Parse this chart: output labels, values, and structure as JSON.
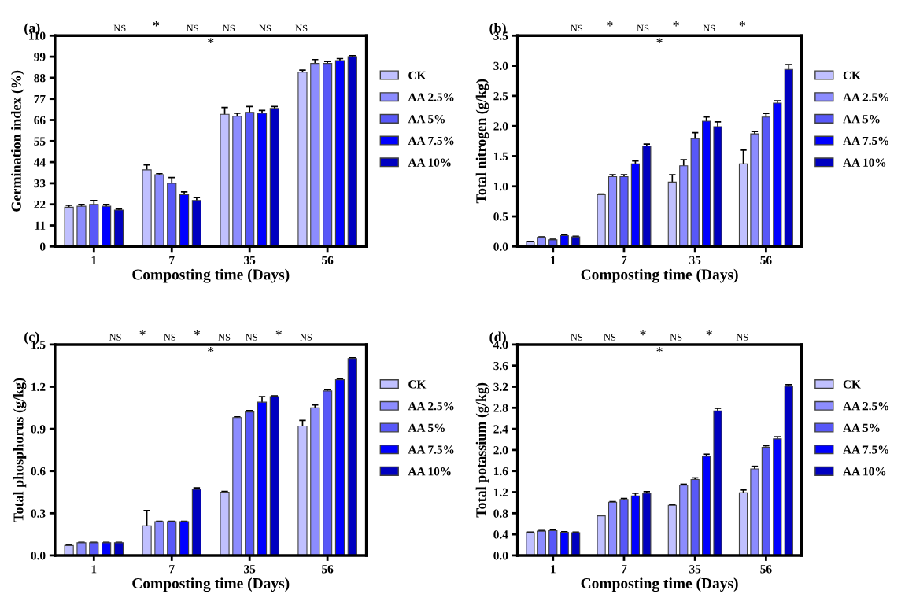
{
  "chart_data": [
    {
      "type": "bar",
      "title": "(a)",
      "xlabel": "Composting time (Days)",
      "ylabel": "Germination index (%)",
      "categories": [
        "1",
        "7",
        "35",
        "56"
      ],
      "ylim": [
        0,
        110
      ],
      "yticks": [
        0,
        11,
        22,
        33,
        44,
        55,
        66,
        77,
        88,
        99,
        110
      ],
      "legend": "right",
      "grid": false,
      "series": [
        {
          "name": "CK",
          "color": "#c0c0ff",
          "values": [
            20.5,
            40,
            69,
            91
          ],
          "errors": [
            1,
            2.5,
            3.5,
            1
          ]
        },
        {
          "name": "AA 2.5%",
          "color": "#8c8cff",
          "values": [
            21,
            37.5,
            68,
            95.5
          ],
          "errors": [
            1,
            0.5,
            1.5,
            2
          ]
        },
        {
          "name": "AA 5%",
          "color": "#5858f8",
          "values": [
            22,
            33,
            70,
            95.5
          ],
          "errors": [
            2,
            3,
            3,
            1
          ]
        },
        {
          "name": "AA 7.5%",
          "color": "#0000ff",
          "values": [
            21,
            27,
            69.5,
            97
          ],
          "errors": [
            1,
            1.5,
            1.5,
            1
          ]
        },
        {
          "name": "AA 10%",
          "color": "#0000c0",
          "values": [
            19,
            24,
            72,
            99
          ],
          "errors": [
            0.5,
            1.5,
            1,
            0.5
          ]
        }
      ],
      "annotations": [
        "*",
        "NS",
        "*",
        "NS",
        "NS",
        "NS",
        "NS"
      ]
    },
    {
      "type": "bar",
      "title": "(b)",
      "xlabel": "Composting time (Days)",
      "ylabel": "Total nitrogen (g/kg)",
      "categories": [
        "1",
        "7",
        "35",
        "56"
      ],
      "ylim": [
        0,
        3.5
      ],
      "yticks": [
        {
          "value": 0,
          "label": "0.0"
        },
        {
          "value": 0.5,
          "label": "0.5"
        },
        {
          "value": 1,
          "label": "1.0"
        },
        {
          "value": 1.5,
          "label": "1.5"
        },
        {
          "value": 2,
          "label": "2.0"
        },
        {
          "value": 2.5,
          "label": "2.5"
        },
        {
          "value": 3,
          "label": "3.0"
        },
        {
          "value": 3.5,
          "label": "3.5"
        }
      ],
      "legend": "right",
      "grid": false,
      "series": [
        {
          "name": "CK",
          "color": "#c0c0ff",
          "values": [
            0.08,
            0.86,
            1.07,
            1.37
          ],
          "errors": [
            0.005,
            0.01,
            0.12,
            0.23
          ]
        },
        {
          "name": "AA 2.5%",
          "color": "#8c8cff",
          "values": [
            0.15,
            1.16,
            1.34,
            1.87
          ],
          "errors": [
            0.01,
            0.03,
            0.1,
            0.04
          ]
        },
        {
          "name": "AA 5%",
          "color": "#5858f8",
          "values": [
            0.11,
            1.16,
            1.79,
            2.15
          ],
          "errors": [
            0.01,
            0.03,
            0.1,
            0.06
          ]
        },
        {
          "name": "AA 7.5%",
          "color": "#0000ff",
          "values": [
            0.18,
            1.37,
            2.08,
            2.38
          ],
          "errors": [
            0.01,
            0.05,
            0.07,
            0.04
          ]
        },
        {
          "name": "AA 10%",
          "color": "#0000c0",
          "values": [
            0.16,
            1.67,
            1.99,
            2.94
          ],
          "errors": [
            0.01,
            0.03,
            0.08,
            0.08
          ]
        }
      ],
      "annotations": [
        "*",
        "NS",
        "*",
        "NS",
        "*",
        "NS",
        "*"
      ]
    },
    {
      "type": "bar",
      "title": "(c)",
      "xlabel": "Composting time (Days)",
      "ylabel": "Total phosphorus (g/kg)",
      "categories": [
        "1",
        "7",
        "35",
        "56"
      ],
      "ylim": [
        0,
        1.5
      ],
      "yticks": [
        {
          "value": 0,
          "label": "0.0"
        },
        {
          "value": 0.3,
          "label": "0.3"
        },
        {
          "value": 0.6,
          "label": "0.6"
        },
        {
          "value": 0.9,
          "label": "0.9"
        },
        {
          "value": 1.2,
          "label": "1.2"
        },
        {
          "value": 1.5,
          "label": "1.5"
        }
      ],
      "legend": "right",
      "grid": false,
      "series": [
        {
          "name": "CK",
          "color": "#c0c0ff",
          "values": [
            0.07,
            0.21,
            0.45,
            0.92
          ],
          "errors": [
            0.003,
            0.11,
            0.005,
            0.04
          ]
        },
        {
          "name": "AA 2.5%",
          "color": "#8c8cff",
          "values": [
            0.09,
            0.24,
            0.98,
            1.05
          ],
          "errors": [
            0.003,
            0.003,
            0.005,
            0.02
          ]
        },
        {
          "name": "AA 5%",
          "color": "#5858f8",
          "values": [
            0.09,
            0.24,
            1.02,
            1.17
          ],
          "errors": [
            0.003,
            0.003,
            0.01,
            0.01
          ]
        },
        {
          "name": "AA 7.5%",
          "color": "#0000ff",
          "values": [
            0.09,
            0.24,
            1.09,
            1.25
          ],
          "errors": [
            0.003,
            0.003,
            0.04,
            0.005
          ]
        },
        {
          "name": "AA 10%",
          "color": "#0000c0",
          "values": [
            0.09,
            0.47,
            1.13,
            1.4
          ],
          "errors": [
            0.003,
            0.01,
            0.005,
            0.005
          ]
        }
      ],
      "annotations": [
        "*",
        "NS",
        "*",
        "NS",
        "*",
        "NS",
        "NS",
        "*",
        "NS"
      ]
    },
    {
      "type": "bar",
      "title": "(d)",
      "xlabel": "Composting time (Days)",
      "ylabel": "Total potassium (g/kg)",
      "categories": [
        "1",
        "7",
        "35",
        "56"
      ],
      "ylim": [
        0,
        4
      ],
      "yticks": [
        {
          "value": 0,
          "label": "0.0"
        },
        {
          "value": 0.4,
          "label": "0.4"
        },
        {
          "value": 0.8,
          "label": "0.8"
        },
        {
          "value": 1.2,
          "label": "1.2"
        },
        {
          "value": 1.6,
          "label": "1.6"
        },
        {
          "value": 2,
          "label": "2.0"
        },
        {
          "value": 2.4,
          "label": "2.4"
        },
        {
          "value": 2.8,
          "label": "2.8"
        },
        {
          "value": 3.2,
          "label": "3.2"
        },
        {
          "value": 3.6,
          "label": "3.6"
        },
        {
          "value": 4,
          "label": "4.0"
        }
      ],
      "legend": "right",
      "grid": false,
      "series": [
        {
          "name": "CK",
          "color": "#c0c0ff",
          "values": [
            0.43,
            0.75,
            0.95,
            1.19
          ],
          "errors": [
            0.01,
            0.01,
            0.01,
            0.05
          ]
        },
        {
          "name": "AA 2.5%",
          "color": "#8c8cff",
          "values": [
            0.46,
            1.01,
            1.33,
            1.64
          ],
          "errors": [
            0.01,
            0.01,
            0.02,
            0.05
          ]
        },
        {
          "name": "AA 5%",
          "color": "#5858f8",
          "values": [
            0.47,
            1.06,
            1.44,
            2.05
          ],
          "errors": [
            0.01,
            0.02,
            0.03,
            0.03
          ]
        },
        {
          "name": "AA 7.5%",
          "color": "#0000ff",
          "values": [
            0.44,
            1.13,
            1.88,
            2.21
          ],
          "errors": [
            0.01,
            0.05,
            0.04,
            0.04
          ]
        },
        {
          "name": "AA 10%",
          "color": "#0000c0",
          "values": [
            0.43,
            1.18,
            2.74,
            3.21
          ],
          "errors": [
            0.01,
            0.03,
            0.05,
            0.03
          ]
        }
      ],
      "annotations": [
        "*",
        "NS",
        "NS",
        "*",
        "NS",
        "*",
        "NS"
      ]
    }
  ]
}
